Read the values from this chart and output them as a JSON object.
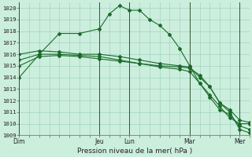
{
  "xlabel": "Pression niveau de la mer( hPa )",
  "background_color": "#cceedd",
  "grid_color": "#99ccbb",
  "line_color": "#1a6b2a",
  "ylim": [
    1009,
    1020.5
  ],
  "yticks": [
    1009,
    1010,
    1011,
    1012,
    1013,
    1014,
    1015,
    1016,
    1017,
    1018,
    1019,
    1020
  ],
  "day_labels": [
    "Dim",
    "Jeu",
    "Lun",
    "Mar",
    "Mer"
  ],
  "day_positions": [
    0,
    8,
    11,
    17,
    22
  ],
  "xlim": [
    0,
    23
  ],
  "series": [
    {
      "x": [
        0,
        2,
        4,
        6,
        8,
        9,
        10,
        11,
        12,
        13,
        14,
        15,
        16,
        17,
        18,
        19,
        20,
        21,
        22,
        23
      ],
      "y": [
        1014.0,
        1016.0,
        1017.8,
        1017.8,
        1018.2,
        1019.5,
        1020.2,
        1019.8,
        1019.8,
        1019.0,
        1018.5,
        1017.7,
        1016.5,
        1015.0,
        1013.5,
        1012.5,
        1011.5,
        1010.5,
        1010.0,
        1010.0
      ]
    },
    {
      "x": [
        0,
        2,
        4,
        6,
        8,
        10,
        12,
        14,
        16,
        17,
        18,
        19,
        20,
        21,
        22,
        23
      ],
      "y": [
        1015.5,
        1016.0,
        1016.0,
        1015.9,
        1015.8,
        1015.5,
        1015.2,
        1015.0,
        1014.9,
        1014.8,
        1014.2,
        1013.2,
        1011.8,
        1011.0,
        1009.5,
        1009.2
      ]
    },
    {
      "x": [
        0,
        2,
        4,
        6,
        8,
        10,
        12,
        14,
        16,
        17,
        18,
        19,
        20,
        21,
        22,
        23
      ],
      "y": [
        1015.0,
        1015.8,
        1015.9,
        1015.8,
        1015.6,
        1015.4,
        1015.2,
        1014.9,
        1014.7,
        1014.5,
        1013.5,
        1012.3,
        1011.2,
        1010.8,
        1009.8,
        1009.5
      ]
    },
    {
      "x": [
        0,
        2,
        4,
        6,
        8,
        10,
        12,
        14,
        16,
        17,
        18,
        19,
        20,
        21,
        22,
        23
      ],
      "y": [
        1016.0,
        1016.3,
        1016.2,
        1016.0,
        1016.0,
        1015.8,
        1015.5,
        1015.2,
        1015.0,
        1014.9,
        1014.0,
        1013.2,
        1011.8,
        1011.2,
        1010.3,
        1010.1
      ]
    }
  ]
}
